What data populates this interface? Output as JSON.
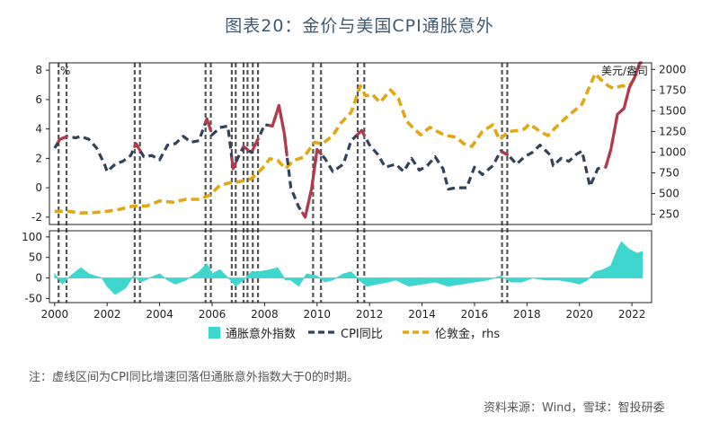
{
  "title": "图表20：金价与美国CPI通胀意外",
  "note": "注：虚线区间为CPI同比增速回落但通胀意外指数大于0的时期。",
  "source": "资料来源：Wind，雪球：智投研委",
  "watermark": "雪球 · 智投研委",
  "colors": {
    "inflation_surprise": "#3ed6cf",
    "cpi": "#344259",
    "cpi_highlight": "#b2394e",
    "gold": "#e0a817",
    "shade_line": "#555555"
  },
  "chart_data": {
    "type": "line",
    "x_range": [
      1999.8,
      2022.75
    ],
    "x_ticks": [
      "2000",
      "2002",
      "2004",
      "2006",
      "2008",
      "2010",
      "2012",
      "2014",
      "2016",
      "2018",
      "2020",
      "2022"
    ],
    "upper_left_axis": {
      "unit": "%",
      "ylim": [
        -2.5,
        8.5
      ],
      "ticks": [
        "8",
        "6",
        "4",
        "2",
        "0",
        "-2"
      ]
    },
    "upper_right_axis": {
      "unit": "美元/盎司",
      "ylim": [
        126,
        2079
      ],
      "ticks": [
        "2000",
        "1750",
        "1500",
        "1250",
        "1000",
        "750",
        "500",
        "250"
      ]
    },
    "lower_axis": {
      "ylim": [
        -60,
        115
      ],
      "ticks": [
        "100",
        "50",
        "0",
        "-50"
      ]
    },
    "dashed_periods": [
      [
        2000.15,
        2000.45
      ],
      [
        2003.05,
        2003.25
      ],
      [
        2005.75,
        2005.95
      ],
      [
        2006.75,
        2006.9
      ],
      [
        2007.2,
        2007.35
      ],
      [
        2007.55,
        2007.75
      ],
      [
        2009.85,
        2010.15
      ],
      [
        2011.55,
        2011.8
      ],
      [
        2017.05,
        2017.25
      ]
    ],
    "series": [
      {
        "name": "通胀意外指数",
        "style": "area",
        "axis": "lower",
        "points": [
          [
            2000.0,
            10
          ],
          [
            2000.3,
            -15
          ],
          [
            2000.6,
            5
          ],
          [
            2001.0,
            25
          ],
          [
            2001.3,
            10
          ],
          [
            2001.8,
            0
          ],
          [
            2002.0,
            -20
          ],
          [
            2002.3,
            -40
          ],
          [
            2002.7,
            -25
          ],
          [
            2003.0,
            5
          ],
          [
            2003.3,
            -10
          ],
          [
            2003.6,
            0
          ],
          [
            2004.0,
            10
          ],
          [
            2004.3,
            -5
          ],
          [
            2004.6,
            -15
          ],
          [
            2005.0,
            -5
          ],
          [
            2005.5,
            15
          ],
          [
            2005.8,
            35
          ],
          [
            2006.0,
            10
          ],
          [
            2006.3,
            20
          ],
          [
            2006.7,
            -5
          ],
          [
            2006.9,
            -20
          ],
          [
            2007.2,
            -5
          ],
          [
            2007.5,
            15
          ],
          [
            2007.8,
            15
          ],
          [
            2008.2,
            20
          ],
          [
            2008.5,
            25
          ],
          [
            2008.8,
            -5
          ],
          [
            2009.0,
            -5
          ],
          [
            2009.3,
            -20
          ],
          [
            2009.6,
            10
          ],
          [
            2010.0,
            5
          ],
          [
            2010.3,
            -10
          ],
          [
            2010.6,
            -5
          ],
          [
            2011.0,
            10
          ],
          [
            2011.3,
            15
          ],
          [
            2011.6,
            -5
          ],
          [
            2011.9,
            -20
          ],
          [
            2012.3,
            -15
          ],
          [
            2012.7,
            -10
          ],
          [
            2013.0,
            -5
          ],
          [
            2013.5,
            -20
          ],
          [
            2014.0,
            -15
          ],
          [
            2014.5,
            -10
          ],
          [
            2015.0,
            -20
          ],
          [
            2015.5,
            -15
          ],
          [
            2016.0,
            -10
          ],
          [
            2016.5,
            -5
          ],
          [
            2017.0,
            5
          ],
          [
            2017.4,
            -10
          ],
          [
            2017.8,
            -10
          ],
          [
            2018.2,
            0
          ],
          [
            2018.7,
            -5
          ],
          [
            2019.2,
            -5
          ],
          [
            2019.7,
            -10
          ],
          [
            2020.0,
            -15
          ],
          [
            2020.3,
            -5
          ],
          [
            2020.6,
            15
          ],
          [
            2020.9,
            20
          ],
          [
            2021.2,
            30
          ],
          [
            2021.45,
            70
          ],
          [
            2021.6,
            88
          ],
          [
            2021.9,
            70
          ],
          [
            2022.2,
            60
          ],
          [
            2022.4,
            65
          ]
        ]
      },
      {
        "name": "CPI同比",
        "style": "dashed",
        "axis": "left",
        "points": [
          [
            2000.0,
            2.7
          ],
          [
            2000.2,
            3.3
          ],
          [
            2000.5,
            3.5
          ],
          [
            2000.8,
            3.4
          ],
          [
            2001.0,
            3.5
          ],
          [
            2001.3,
            3.3
          ],
          [
            2001.6,
            2.7
          ],
          [
            2001.9,
            1.6
          ],
          [
            2002.0,
            1.1
          ],
          [
            2002.3,
            1.6
          ],
          [
            2002.6,
            1.8
          ],
          [
            2002.9,
            2.2
          ],
          [
            2003.1,
            3.0
          ],
          [
            2003.4,
            2.1
          ],
          [
            2003.7,
            2.2
          ],
          [
            2004.0,
            1.9
          ],
          [
            2004.3,
            2.9
          ],
          [
            2004.6,
            3.0
          ],
          [
            2004.9,
            3.5
          ],
          [
            2005.2,
            3.1
          ],
          [
            2005.5,
            3.2
          ],
          [
            2005.8,
            4.7
          ],
          [
            2006.0,
            3.6
          ],
          [
            2006.3,
            4.1
          ],
          [
            2006.6,
            4.2
          ],
          [
            2006.8,
            1.3
          ],
          [
            2007.0,
            2.1
          ],
          [
            2007.2,
            2.8
          ],
          [
            2007.5,
            2.4
          ],
          [
            2007.8,
            3.5
          ],
          [
            2008.0,
            4.3
          ],
          [
            2008.3,
            4.2
          ],
          [
            2008.55,
            5.6
          ],
          [
            2008.75,
            3.7
          ],
          [
            2009.0,
            0.0
          ],
          [
            2009.3,
            -1.3
          ],
          [
            2009.55,
            -2.0
          ],
          [
            2009.8,
            0.0
          ],
          [
            2010.0,
            2.6
          ],
          [
            2010.3,
            2.0
          ],
          [
            2010.6,
            1.1
          ],
          [
            2011.0,
            1.6
          ],
          [
            2011.3,
            3.2
          ],
          [
            2011.7,
            3.9
          ],
          [
            2012.0,
            2.9
          ],
          [
            2012.3,
            2.3
          ],
          [
            2012.6,
            1.4
          ],
          [
            2013.0,
            1.6
          ],
          [
            2013.3,
            1.1
          ],
          [
            2013.6,
            2.0
          ],
          [
            2013.9,
            1.2
          ],
          [
            2014.2,
            1.5
          ],
          [
            2014.5,
            2.1
          ],
          [
            2014.8,
            1.3
          ],
          [
            2015.0,
            -0.1
          ],
          [
            2015.3,
            0.0
          ],
          [
            2015.7,
            0.0
          ],
          [
            2016.0,
            1.4
          ],
          [
            2016.3,
            0.9
          ],
          [
            2016.7,
            1.5
          ],
          [
            2017.0,
            2.5
          ],
          [
            2017.3,
            2.2
          ],
          [
            2017.6,
            1.6
          ],
          [
            2017.9,
            2.1
          ],
          [
            2018.2,
            2.4
          ],
          [
            2018.5,
            2.9
          ],
          [
            2018.9,
            2.2
          ],
          [
            2019.0,
            1.5
          ],
          [
            2019.3,
            2.0
          ],
          [
            2019.6,
            1.8
          ],
          [
            2019.9,
            2.3
          ],
          [
            2020.1,
            2.5
          ],
          [
            2020.4,
            0.1
          ],
          [
            2020.7,
            1.3
          ],
          [
            2021.0,
            1.4
          ],
          [
            2021.2,
            2.6
          ],
          [
            2021.45,
            5.0
          ],
          [
            2021.7,
            5.4
          ],
          [
            2021.9,
            6.8
          ],
          [
            2022.1,
            7.5
          ],
          [
            2022.3,
            8.5
          ]
        ]
      },
      {
        "name": "伦敦金，rhs",
        "style": "dashed",
        "axis": "right",
        "points": [
          [
            2000.0,
            285
          ],
          [
            2000.5,
            285
          ],
          [
            2001.0,
            265
          ],
          [
            2001.5,
            270
          ],
          [
            2002.0,
            285
          ],
          [
            2002.5,
            310
          ],
          [
            2003.0,
            350
          ],
          [
            2003.5,
            350
          ],
          [
            2004.0,
            410
          ],
          [
            2004.5,
            395
          ],
          [
            2005.0,
            430
          ],
          [
            2005.5,
            430
          ],
          [
            2005.9,
            480
          ],
          [
            2006.3,
            600
          ],
          [
            2006.7,
            630
          ],
          [
            2007.0,
            640
          ],
          [
            2007.5,
            680
          ],
          [
            2007.9,
            800
          ],
          [
            2008.2,
            920
          ],
          [
            2008.5,
            900
          ],
          [
            2008.8,
            800
          ],
          [
            2009.1,
            900
          ],
          [
            2009.5,
            940
          ],
          [
            2009.9,
            1120
          ],
          [
            2010.2,
            1100
          ],
          [
            2010.6,
            1200
          ],
          [
            2010.9,
            1350
          ],
          [
            2011.3,
            1480
          ],
          [
            2011.65,
            1800
          ],
          [
            2011.85,
            1680
          ],
          [
            2012.1,
            1700
          ],
          [
            2012.4,
            1600
          ],
          [
            2012.8,
            1750
          ],
          [
            2013.1,
            1650
          ],
          [
            2013.4,
            1380
          ],
          [
            2013.7,
            1280
          ],
          [
            2013.95,
            1210
          ],
          [
            2014.3,
            1300
          ],
          [
            2014.7,
            1230
          ],
          [
            2014.95,
            1200
          ],
          [
            2015.3,
            1180
          ],
          [
            2015.6,
            1100
          ],
          [
            2015.9,
            1070
          ],
          [
            2016.3,
            1250
          ],
          [
            2016.7,
            1330
          ],
          [
            2016.95,
            1150
          ],
          [
            2017.3,
            1250
          ],
          [
            2017.6,
            1260
          ],
          [
            2017.9,
            1280
          ],
          [
            2018.1,
            1340
          ],
          [
            2018.5,
            1250
          ],
          [
            2018.8,
            1200
          ],
          [
            2019.1,
            1300
          ],
          [
            2019.5,
            1420
          ],
          [
            2019.8,
            1500
          ],
          [
            2020.1,
            1580
          ],
          [
            2020.6,
            1950
          ],
          [
            2020.8,
            1880
          ],
          [
            2021.1,
            1800
          ],
          [
            2021.3,
            1770
          ],
          [
            2021.6,
            1800
          ],
          [
            2021.9,
            1800
          ],
          [
            2022.2,
            1940
          ]
        ]
      }
    ],
    "highlight_periods_cpi": [
      [
        2000.15,
        2000.45
      ],
      [
        2003.05,
        2003.25
      ],
      [
        2005.75,
        2005.95
      ],
      [
        2006.75,
        2006.9
      ],
      [
        2007.2,
        2007.35
      ],
      [
        2007.55,
        2007.75
      ],
      [
        2008.2,
        2008.85
      ],
      [
        2009.45,
        2010.15
      ],
      [
        2011.55,
        2011.8
      ],
      [
        2017.05,
        2017.25
      ],
      [
        2021.0,
        2022.35
      ]
    ],
    "legend_position": "bottom"
  }
}
